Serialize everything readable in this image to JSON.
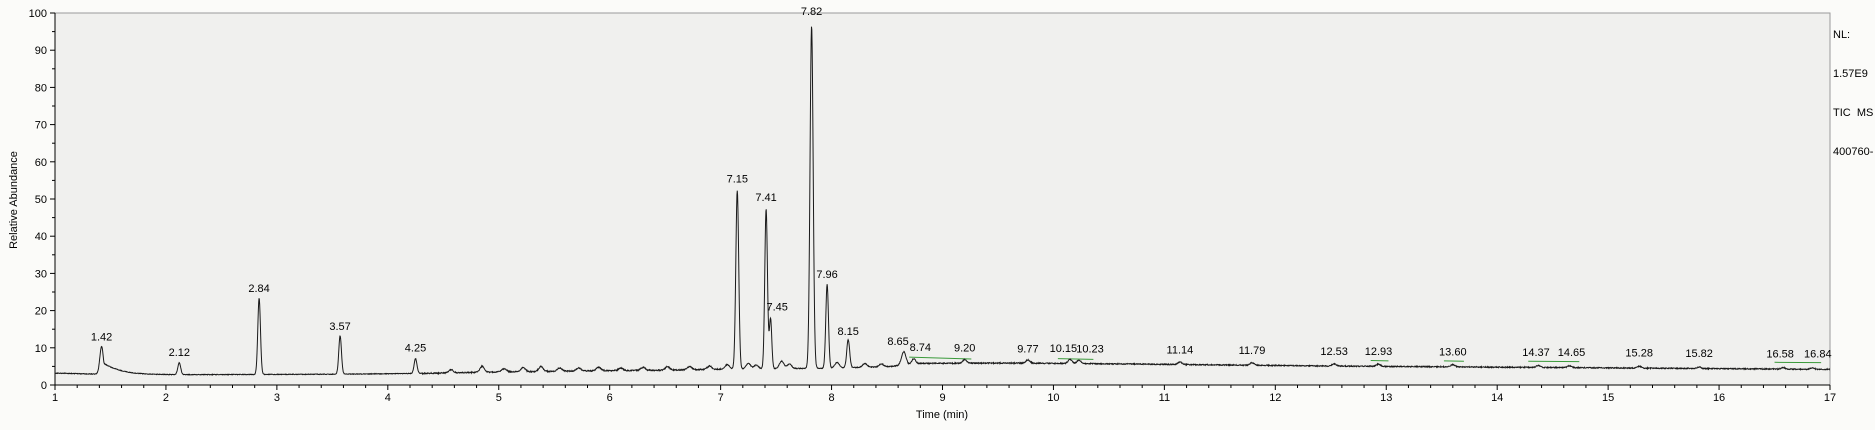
{
  "chart_data": {
    "type": "line",
    "title": "",
    "xlabel": "Time (min)",
    "ylabel": "Relative Abundance",
    "xlim": [
      1,
      17
    ],
    "ylim": [
      0,
      100
    ],
    "x_major_ticks": [
      1,
      2,
      3,
      4,
      5,
      6,
      7,
      8,
      9,
      10,
      11,
      12,
      13,
      14,
      15,
      16,
      17
    ],
    "y_major_ticks": [
      0,
      10,
      20,
      30,
      40,
      50,
      60,
      70,
      80,
      90,
      100
    ],
    "x_minor_step": 0.2,
    "y_minor_step": 5,
    "grid": false,
    "legend": null,
    "colors": {
      "trace": "#1a1a1a",
      "plot_bg": "#f0f0ee",
      "frame": "#9a9a9a",
      "leader": "#3a9a3a",
      "text": "#000000"
    },
    "annotation": {
      "lines": [
        "NL:",
        "1.57E9",
        "TIC  MS",
        "400760-"
      ]
    },
    "baseline": [
      [
        1,
        3.2
      ],
      [
        1.7,
        2.7
      ],
      [
        2.5,
        2.8
      ],
      [
        3.5,
        2.9
      ],
      [
        4.3,
        3.1
      ],
      [
        5.0,
        3.5
      ],
      [
        5.8,
        3.8
      ],
      [
        6.5,
        4.0
      ],
      [
        7.1,
        4.3
      ],
      [
        7.9,
        4.5
      ],
      [
        8.5,
        4.9
      ],
      [
        8.8,
        5.8
      ],
      [
        9.6,
        5.9
      ],
      [
        10.5,
        5.7
      ],
      [
        11.5,
        5.4
      ],
      [
        12.5,
        5.1
      ],
      [
        13.5,
        4.9
      ],
      [
        14.5,
        4.7
      ],
      [
        15.5,
        4.5
      ],
      [
        16.5,
        4.3
      ],
      [
        17,
        4.2
      ]
    ],
    "noise_amp": [
      [
        4.3,
        0.18
      ],
      [
        7.05,
        0.32
      ],
      [
        8.5,
        0.22
      ],
      [
        17.1,
        0.28
      ]
    ],
    "peaks": [
      {
        "time": 1.42,
        "height": 7.4,
        "sigma": 0.016,
        "tail": 0.16,
        "label": "1.42",
        "label_v": 12.0
      },
      {
        "time": 2.12,
        "height": 3.2,
        "sigma": 0.013,
        "label": "2.12",
        "label_v": 7.8
      },
      {
        "time": 2.84,
        "height": 20.5,
        "sigma": 0.012,
        "label": "2.84",
        "label_v": 25.0
      },
      {
        "time": 3.57,
        "height": 10.3,
        "sigma": 0.012,
        "label": "3.57",
        "label_v": 14.8
      },
      {
        "time": 4.25,
        "height": 4.0,
        "sigma": 0.013,
        "label": "4.25",
        "label_v": 9.0
      },
      {
        "time": 7.15,
        "height": 48.0,
        "sigma": 0.013,
        "label": "7.15",
        "label_v": 54.5
      },
      {
        "time": 7.41,
        "height": 43.0,
        "sigma": 0.012,
        "label": "7.41",
        "label_v": 49.5
      },
      {
        "time": 7.45,
        "height": 13.5,
        "sigma": 0.011,
        "label": "7.45",
        "label_v": 20.0,
        "dx": 0.06
      },
      {
        "time": 7.82,
        "height": 92.0,
        "sigma": 0.014,
        "label": "7.82",
        "label_v": 99.5
      },
      {
        "time": 7.96,
        "height": 22.5,
        "sigma": 0.012,
        "label": "7.96",
        "label_v": 28.8
      },
      {
        "time": 8.15,
        "height": 7.5,
        "sigma": 0.013,
        "label": "8.15",
        "label_v": 13.5
      },
      {
        "time": 8.65,
        "height": 3.6,
        "sigma": 0.02,
        "label": "8.65",
        "label_v": 10.8,
        "dx": -0.05
      },
      {
        "time": 8.74,
        "height": 1.4,
        "sigma": 0.018,
        "label": "8.74",
        "label_v": 9.2,
        "dx": 0.06
      },
      {
        "time": 9.2,
        "height": 1.0,
        "sigma": 0.018,
        "label": "9.20",
        "label_v": 9.0
      },
      {
        "time": 9.77,
        "height": 0.9,
        "sigma": 0.018,
        "label": "9.77",
        "label_v": 8.8
      },
      {
        "time": 10.15,
        "height": 1.1,
        "sigma": 0.018,
        "label": "10.15",
        "label_v": 8.9,
        "dx": -0.06
      },
      {
        "time": 10.23,
        "height": 0.9,
        "sigma": 0.018,
        "label": "10.23",
        "label_v": 8.8,
        "dx": 0.1
      },
      {
        "time": 11.14,
        "height": 0.7,
        "sigma": 0.018,
        "label": "11.14",
        "label_v": 8.5
      },
      {
        "time": 11.79,
        "height": 0.7,
        "sigma": 0.018,
        "label": "11.79",
        "label_v": 8.3
      },
      {
        "time": 12.53,
        "height": 0.6,
        "sigma": 0.018,
        "label": "12.53",
        "label_v": 8.1
      },
      {
        "time": 12.93,
        "height": 0.6,
        "sigma": 0.018,
        "label": "12.93",
        "label_v": 8.0
      },
      {
        "time": 13.6,
        "height": 0.6,
        "sigma": 0.018,
        "label": "13.60",
        "label_v": 7.9
      },
      {
        "time": 14.37,
        "height": 0.5,
        "sigma": 0.018,
        "label": "14.37",
        "label_v": 7.8,
        "dx": -0.02
      },
      {
        "time": 14.65,
        "height": 0.5,
        "sigma": 0.018,
        "label": "14.65",
        "label_v": 7.8,
        "dx": 0.02
      },
      {
        "time": 15.28,
        "height": 0.5,
        "sigma": 0.018,
        "label": "15.28",
        "label_v": 7.6
      },
      {
        "time": 15.82,
        "height": 0.4,
        "sigma": 0.018,
        "label": "15.82",
        "label_v": 7.5
      },
      {
        "time": 16.58,
        "height": 0.4,
        "sigma": 0.018,
        "label": "16.58",
        "label_v": 7.4,
        "dx": -0.03
      },
      {
        "time": 16.84,
        "height": 0.4,
        "sigma": 0.018,
        "label": "16.84",
        "label_v": 7.4,
        "dx": 0.05
      }
    ],
    "unlabeled_bumps": [
      [
        4.57,
        0.9
      ],
      [
        4.85,
        1.6
      ],
      [
        5.05,
        0.9
      ],
      [
        5.22,
        1.1
      ],
      [
        5.38,
        1.3
      ],
      [
        5.55,
        0.9
      ],
      [
        5.72,
        0.8
      ],
      [
        5.9,
        0.9
      ],
      [
        6.1,
        0.7
      ],
      [
        6.3,
        0.8
      ],
      [
        6.52,
        0.9
      ],
      [
        6.72,
        0.8
      ],
      [
        6.9,
        0.9
      ],
      [
        7.06,
        1.2
      ],
      [
        7.25,
        1.5
      ],
      [
        7.32,
        1.0
      ],
      [
        7.55,
        2.0
      ],
      [
        7.62,
        1.2
      ],
      [
        8.05,
        1.5
      ],
      [
        8.3,
        1.0
      ],
      [
        8.45,
        0.8
      ]
    ],
    "leader_lines": [
      [
        8.7,
        7.5,
        9.26,
        7.0
      ],
      [
        10.04,
        7.1,
        10.36,
        6.9
      ],
      [
        12.86,
        6.6,
        13.02,
        6.5
      ],
      [
        13.52,
        6.5,
        13.7,
        6.4
      ],
      [
        14.28,
        6.4,
        14.74,
        6.3
      ],
      [
        16.5,
        6.1,
        16.92,
        6.0
      ]
    ]
  }
}
